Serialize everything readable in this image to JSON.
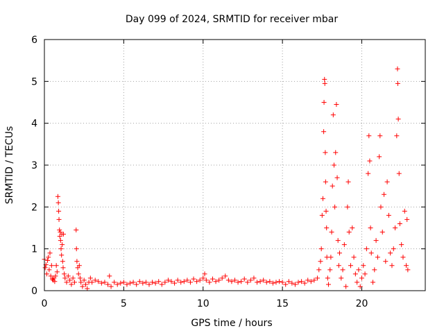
{
  "chart_data": {
    "type": "scatter",
    "title": "Day 099 of 2024, SRMTID for receiver mbar",
    "xlabel": "GPS time / hours",
    "ylabel": "SRMTID / TECUs",
    "xlim": [
      0,
      24
    ],
    "ylim": [
      0,
      6
    ],
    "xticks": [
      0,
      5,
      10,
      15,
      20
    ],
    "yticks": [
      0,
      1,
      2,
      3,
      4,
      5,
      6
    ],
    "grid": true,
    "marker": "plus",
    "color": "#ff0000",
    "series": [
      {
        "name": "SRMTID",
        "points": [
          [
            0.0,
            0.75
          ],
          [
            0.05,
            0.55
          ],
          [
            0.1,
            0.62
          ],
          [
            0.15,
            0.4
          ],
          [
            0.2,
            0.72
          ],
          [
            0.25,
            0.8
          ],
          [
            0.3,
            0.5
          ],
          [
            0.35,
            0.9
          ],
          [
            0.4,
            0.35
          ],
          [
            0.45,
            0.6
          ],
          [
            0.5,
            0.28
          ],
          [
            0.55,
            0.25
          ],
          [
            0.6,
            0.3
          ],
          [
            0.65,
            0.22
          ],
          [
            0.7,
            0.35
          ],
          [
            0.75,
            0.6
          ],
          [
            0.8,
            0.45
          ],
          [
            0.85,
            2.25
          ],
          [
            0.88,
            2.1
          ],
          [
            0.9,
            1.9
          ],
          [
            0.92,
            1.7
          ],
          [
            0.95,
            1.45
          ],
          [
            0.97,
            1.3
          ],
          [
            1.0,
            1.4
          ],
          [
            1.02,
            1.2
          ],
          [
            1.05,
            1.0
          ],
          [
            1.08,
            0.85
          ],
          [
            1.1,
            1.35
          ],
          [
            1.12,
            1.1
          ],
          [
            1.15,
            0.7
          ],
          [
            1.18,
            0.55
          ],
          [
            1.2,
            1.35
          ],
          [
            1.25,
            0.4
          ],
          [
            1.3,
            0.3
          ],
          [
            1.4,
            0.2
          ],
          [
            1.5,
            0.35
          ],
          [
            1.6,
            0.25
          ],
          [
            1.7,
            0.15
          ],
          [
            1.8,
            0.3
          ],
          [
            1.9,
            0.2
          ],
          [
            2.0,
            1.45
          ],
          [
            2.02,
            1.0
          ],
          [
            2.05,
            0.7
          ],
          [
            2.1,
            0.55
          ],
          [
            2.15,
            0.4
          ],
          [
            2.2,
            0.6
          ],
          [
            2.25,
            0.3
          ],
          [
            2.3,
            0.2
          ],
          [
            2.4,
            0.1
          ],
          [
            2.5,
            0.25
          ],
          [
            2.6,
            0.15
          ],
          [
            2.7,
            0.05
          ],
          [
            2.8,
            0.2
          ],
          [
            2.9,
            0.3
          ],
          [
            3.0,
            0.2
          ],
          [
            3.2,
            0.25
          ],
          [
            3.4,
            0.22
          ],
          [
            3.6,
            0.18
          ],
          [
            3.8,
            0.2
          ],
          [
            4.0,
            0.15
          ],
          [
            4.1,
            0.35
          ],
          [
            4.2,
            0.1
          ],
          [
            4.4,
            0.2
          ],
          [
            4.6,
            0.15
          ],
          [
            4.8,
            0.18
          ],
          [
            5.0,
            0.2
          ],
          [
            5.2,
            0.15
          ],
          [
            5.4,
            0.18
          ],
          [
            5.6,
            0.2
          ],
          [
            5.8,
            0.15
          ],
          [
            6.0,
            0.22
          ],
          [
            6.2,
            0.18
          ],
          [
            6.4,
            0.2
          ],
          [
            6.6,
            0.15
          ],
          [
            6.8,
            0.2
          ],
          [
            7.0,
            0.18
          ],
          [
            7.2,
            0.22
          ],
          [
            7.4,
            0.15
          ],
          [
            7.6,
            0.2
          ],
          [
            7.8,
            0.25
          ],
          [
            8.0,
            0.22
          ],
          [
            8.2,
            0.18
          ],
          [
            8.4,
            0.25
          ],
          [
            8.6,
            0.2
          ],
          [
            8.8,
            0.22
          ],
          [
            9.0,
            0.25
          ],
          [
            9.2,
            0.2
          ],
          [
            9.4,
            0.28
          ],
          [
            9.6,
            0.22
          ],
          [
            9.8,
            0.25
          ],
          [
            10.0,
            0.3
          ],
          [
            10.1,
            0.4
          ],
          [
            10.2,
            0.25
          ],
          [
            10.4,
            0.2
          ],
          [
            10.6,
            0.28
          ],
          [
            10.8,
            0.22
          ],
          [
            11.0,
            0.25
          ],
          [
            11.2,
            0.3
          ],
          [
            11.4,
            0.35
          ],
          [
            11.6,
            0.25
          ],
          [
            11.8,
            0.22
          ],
          [
            12.0,
            0.25
          ],
          [
            12.2,
            0.2
          ],
          [
            12.4,
            0.22
          ],
          [
            12.6,
            0.28
          ],
          [
            12.8,
            0.2
          ],
          [
            13.0,
            0.25
          ],
          [
            13.2,
            0.3
          ],
          [
            13.4,
            0.2
          ],
          [
            13.6,
            0.22
          ],
          [
            13.8,
            0.25
          ],
          [
            14.0,
            0.2
          ],
          [
            14.2,
            0.22
          ],
          [
            14.4,
            0.18
          ],
          [
            14.6,
            0.2
          ],
          [
            14.8,
            0.22
          ],
          [
            15.0,
            0.2
          ],
          [
            15.2,
            0.15
          ],
          [
            15.4,
            0.22
          ],
          [
            15.6,
            0.18
          ],
          [
            15.8,
            0.15
          ],
          [
            16.0,
            0.2
          ],
          [
            16.2,
            0.22
          ],
          [
            16.4,
            0.18
          ],
          [
            16.6,
            0.25
          ],
          [
            16.8,
            0.22
          ],
          [
            17.0,
            0.25
          ],
          [
            17.2,
            0.3
          ],
          [
            17.3,
            0.5
          ],
          [
            17.4,
            0.7
          ],
          [
            17.45,
            1.0
          ],
          [
            17.5,
            1.8
          ],
          [
            17.55,
            2.2
          ],
          [
            17.6,
            3.8
          ],
          [
            17.62,
            4.5
          ],
          [
            17.65,
            5.05
          ],
          [
            17.67,
            4.95
          ],
          [
            17.7,
            3.3
          ],
          [
            17.72,
            2.6
          ],
          [
            17.75,
            1.9
          ],
          [
            17.78,
            1.5
          ],
          [
            17.8,
            0.8
          ],
          [
            17.85,
            0.3
          ],
          [
            17.9,
            0.15
          ],
          [
            18.0,
            0.5
          ],
          [
            18.05,
            0.8
          ],
          [
            18.1,
            1.4
          ],
          [
            18.15,
            2.5
          ],
          [
            18.2,
            4.2
          ],
          [
            18.25,
            3.0
          ],
          [
            18.3,
            2.0
          ],
          [
            18.35,
            3.3
          ],
          [
            18.4,
            4.45
          ],
          [
            18.45,
            2.7
          ],
          [
            18.5,
            1.2
          ],
          [
            18.55,
            0.6
          ],
          [
            18.6,
            0.9
          ],
          [
            18.7,
            0.3
          ],
          [
            18.8,
            0.5
          ],
          [
            18.9,
            1.1
          ],
          [
            19.0,
            0.1
          ],
          [
            19.1,
            2.0
          ],
          [
            19.15,
            2.6
          ],
          [
            19.2,
            1.4
          ],
          [
            19.3,
            0.6
          ],
          [
            19.4,
            1.5
          ],
          [
            19.5,
            0.8
          ],
          [
            19.6,
            0.4
          ],
          [
            19.7,
            0.2
          ],
          [
            19.8,
            0.5
          ],
          [
            19.9,
            0.1
          ],
          [
            20.0,
            0.3
          ],
          [
            20.1,
            0.6
          ],
          [
            20.2,
            0.4
          ],
          [
            20.3,
            1.0
          ],
          [
            20.4,
            2.8
          ],
          [
            20.45,
            3.7
          ],
          [
            20.5,
            3.1
          ],
          [
            20.55,
            1.5
          ],
          [
            20.6,
            0.9
          ],
          [
            20.7,
            0.2
          ],
          [
            20.8,
            0.5
          ],
          [
            20.9,
            1.2
          ],
          [
            21.0,
            0.8
          ],
          [
            21.1,
            3.2
          ],
          [
            21.15,
            3.7
          ],
          [
            21.2,
            2.0
          ],
          [
            21.3,
            1.4
          ],
          [
            21.4,
            2.3
          ],
          [
            21.5,
            0.7
          ],
          [
            21.6,
            2.6
          ],
          [
            21.7,
            1.8
          ],
          [
            21.8,
            0.9
          ],
          [
            21.9,
            0.6
          ],
          [
            22.0,
            1.0
          ],
          [
            22.1,
            1.5
          ],
          [
            22.2,
            3.7
          ],
          [
            22.25,
            5.3
          ],
          [
            22.27,
            4.95
          ],
          [
            22.3,
            4.1
          ],
          [
            22.35,
            2.8
          ],
          [
            22.4,
            1.6
          ],
          [
            22.5,
            1.1
          ],
          [
            22.6,
            0.8
          ],
          [
            22.7,
            1.9
          ],
          [
            22.8,
            0.6
          ],
          [
            22.85,
            1.7
          ],
          [
            22.9,
            0.5
          ]
        ]
      }
    ]
  }
}
